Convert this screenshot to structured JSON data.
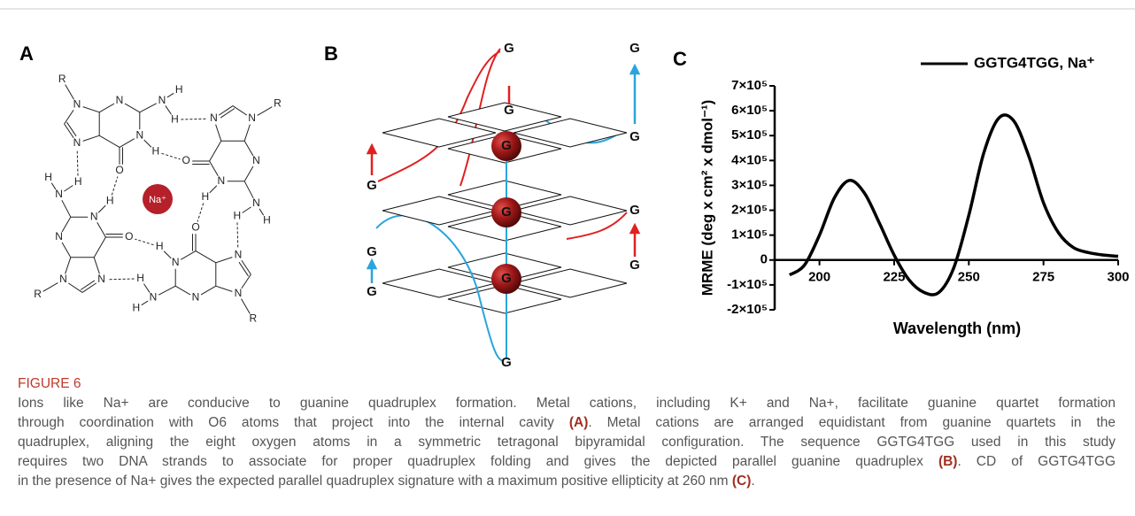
{
  "figure_label": "FIGURE 6",
  "caption": {
    "lines": [
      [
        {
          "text": "Ions like Na+ are conducive to guanine quadruplex formation. Metal cations, including K+ and Na+, facilitate guanine quartet formation"
        }
      ],
      [
        {
          "text": "through coordination with O6 atoms that project into the internal cavity "
        },
        {
          "ref": "(A)"
        },
        {
          "text": ". Metal cations are arranged equidistant from guanine quartets in the"
        }
      ],
      [
        {
          "text": "quadruplex, aligning the eight oxygen atoms in a symmetric tetragonal bipyramidal configuration. The sequence GGTG4TGG used in this study"
        }
      ],
      [
        {
          "text": "requires two DNA strands to associate for proper quadruplex folding and gives the depicted parallel guanine quadruplex "
        },
        {
          "ref": "(B)"
        },
        {
          "text": ". CD of GGTG4TGG"
        }
      ],
      [
        {
          "text": "in the presence of Na+ gives the expected parallel quadruplex signature with a maximum positive ellipticity at 260 nm "
        },
        {
          "ref": "(C)"
        },
        {
          "text": "."
        }
      ]
    ]
  },
  "panel_a": {
    "label": "A",
    "ion": "Na⁺",
    "guanines": [
      {
        "atoms": [
          "N",
          "N",
          "H",
          "N",
          "N",
          "O",
          "N",
          "H",
          "H",
          "R"
        ]
      },
      {
        "atoms": [
          "N",
          "N",
          "H",
          "N",
          "N",
          "O",
          "N",
          "H",
          "H",
          "R"
        ]
      },
      {
        "atoms": [
          "N",
          "N",
          "H",
          "N",
          "N",
          "O",
          "N",
          "H",
          "H",
          "R"
        ]
      },
      {
        "atoms": [
          "N",
          "N",
          "H",
          "N",
          "N",
          "O",
          "N",
          "H",
          "H",
          "R"
        ]
      }
    ]
  },
  "panel_b": {
    "label": "B",
    "bases": [
      "G",
      "G",
      "G",
      "G",
      "G",
      "G",
      "G",
      "G",
      "G",
      "G",
      "G",
      "G",
      "G"
    ]
  },
  "chart_data": {
    "type": "line",
    "panel_label": "C",
    "x_label": "Wavelength (nm)",
    "y_label": "MRME (deg x cm² x dmol⁻¹)",
    "x": [
      190,
      195,
      200,
      205,
      210,
      215,
      220,
      225,
      230,
      235,
      240,
      245,
      250,
      255,
      260,
      265,
      270,
      275,
      280,
      285,
      290,
      295,
      300
    ],
    "series": [
      {
        "name": "GGTG4TGG, Na⁺",
        "color": "#000000",
        "values": [
          -60000,
          -20000,
          100000,
          250000,
          320000,
          270000,
          150000,
          20000,
          -80000,
          -130000,
          -130000,
          -30000,
          180000,
          430000,
          570000,
          560000,
          420000,
          230000,
          110000,
          50000,
          30000,
          20000,
          15000
        ]
      }
    ],
    "xlim": [
      185,
      300
    ],
    "xticks": [
      200,
      225,
      250,
      275,
      300
    ],
    "ylim": [
      -200000,
      700000
    ],
    "yticks": [
      {
        "value": -200000,
        "label": "-2×10⁵"
      },
      {
        "value": -100000,
        "label": "-1×10⁵"
      },
      0,
      {
        "value": 100000,
        "label": "1×10⁵"
      },
      {
        "value": 200000,
        "label": "2×10⁵"
      },
      {
        "value": 300000,
        "label": "3×10⁵"
      },
      {
        "value": 400000,
        "label": "4×10⁵"
      },
      {
        "value": 500000,
        "label": "5×10⁵"
      },
      {
        "value": 600000,
        "label": "6×10⁵"
      },
      {
        "value": 700000,
        "label": "7×10⁵"
      }
    ]
  }
}
